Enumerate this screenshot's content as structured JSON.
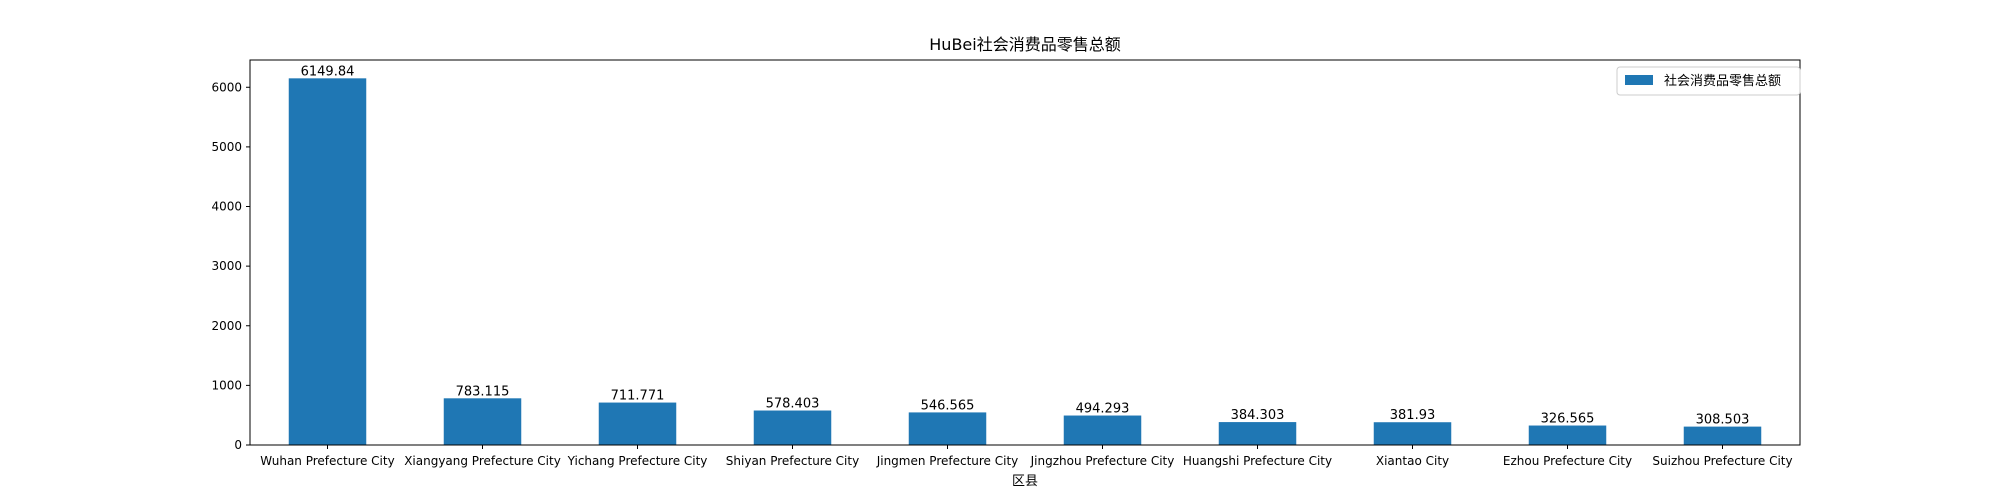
{
  "chart_data": {
    "type": "bar",
    "title": "HuBei社会消费品零售总额",
    "xlabel": "区县",
    "ylabel": "",
    "categories": [
      "Wuhan Prefecture City",
      "Xiangyang Prefecture City",
      "Yichang Prefecture City",
      "Shiyan Prefecture City",
      "Jingmen Prefecture City",
      "Jingzhou Prefecture City",
      "Huangshi Prefecture City",
      "Xiantao City",
      "Ezhou Prefecture City",
      "Suizhou Prefecture City"
    ],
    "series": [
      {
        "name": "社会消费品零售总额",
        "color": "#1f77b4",
        "values": [
          6149.84,
          783.115,
          711.771,
          578.403,
          546.565,
          494.293,
          384.303,
          381.93,
          326.565,
          308.503
        ],
        "labels": [
          "6149.84",
          "783.115",
          "711.771",
          "578.403",
          "546.565",
          "494.293",
          "384.303",
          "381.93",
          "326.565",
          "308.503"
        ]
      }
    ],
    "y_ticks": [
      0,
      1000,
      2000,
      3000,
      4000,
      5000,
      6000
    ],
    "ylim": [
      0,
      6457.3
    ],
    "grid": false,
    "legend_position": "top-right"
  }
}
